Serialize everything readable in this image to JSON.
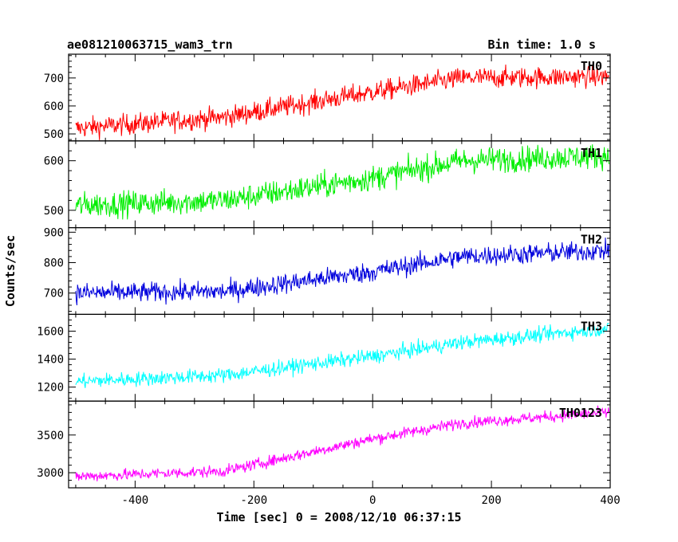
{
  "chart_data": {
    "type": "line",
    "title": "ae081210063715_wam3_trn",
    "subtitle": "Bin time: 1.0 s",
    "xlabel": "Time [sec] 0 = 2008/12/10 06:37:15",
    "ylabel": "Counts/sec",
    "xlim": [
      -512,
      400
    ],
    "x_ticks": [
      -400,
      -200,
      0,
      200,
      400
    ],
    "x_range": [
      -500,
      398
    ],
    "x_step": 1,
    "grid": false,
    "panels": [
      {
        "name": "TH0",
        "color": "#ff0000",
        "ylim": [
          475,
          785
        ],
        "y_ticks": [
          500,
          600,
          700
        ],
        "trend": [
          [
            -500,
            520
          ],
          [
            -250,
            560
          ],
          [
            0,
            650
          ],
          [
            150,
            700
          ],
          [
            400,
            705
          ]
        ],
        "noise": 32
      },
      {
        "name": "TH1",
        "color": "#00ee00",
        "ylim": [
          465,
          640
        ],
        "y_ticks": [
          500,
          600
        ],
        "trend": [
          [
            -500,
            510
          ],
          [
            -250,
            520
          ],
          [
            0,
            565
          ],
          [
            150,
            600
          ],
          [
            400,
            610
          ]
        ],
        "noise": 22
      },
      {
        "name": "TH2",
        "color": "#0000dd",
        "ylim": [
          630,
          915
        ],
        "y_ticks": [
          700,
          800,
          900
        ],
        "trend": [
          [
            -500,
            700
          ],
          [
            -250,
            705
          ],
          [
            0,
            770
          ],
          [
            150,
            820
          ],
          [
            400,
            840
          ]
        ],
        "noise": 28
      },
      {
        "name": "TH3",
        "color": "#00ffff",
        "ylim": [
          1100,
          1720
        ],
        "y_ticks": [
          1200,
          1400,
          1600
        ],
        "trend": [
          [
            -500,
            1240
          ],
          [
            -250,
            1285
          ],
          [
            0,
            1420
          ],
          [
            150,
            1520
          ],
          [
            400,
            1620
          ]
        ],
        "noise": 45
      },
      {
        "name": "TH0123",
        "color": "#ff00ff",
        "ylim": [
          2800,
          3950
        ],
        "y_ticks": [
          3000,
          3500
        ],
        "trend": [
          [
            -500,
            2950
          ],
          [
            -250,
            3020
          ],
          [
            0,
            3450
          ],
          [
            150,
            3660
          ],
          [
            400,
            3800
          ]
        ],
        "noise": 65
      }
    ]
  }
}
